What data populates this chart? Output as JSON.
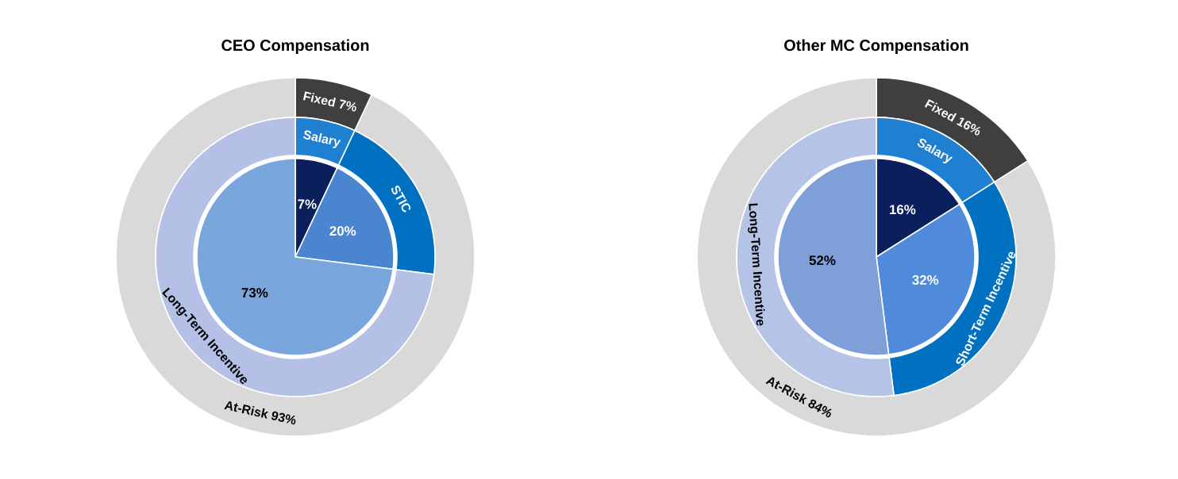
{
  "chart_data": [
    {
      "type": "donut",
      "title": "CEO Compensation",
      "categories": [
        "Fixed 7%",
        "At-Risk 93%"
      ],
      "values": [
        7,
        93
      ],
      "colors": [
        "#3f3f3f",
        "#d9d9d9"
      ]
    },
    {
      "type": "donut",
      "categories": [
        "Salary",
        "STIC",
        "Long-Term Incentive"
      ],
      "values": [
        7,
        20,
        73
      ],
      "colors": [
        "#1f7fd0",
        "#0070c0",
        "#b4c0e6"
      ]
    },
    {
      "type": "pie",
      "categories": [
        null,
        null,
        null
      ],
      "values": [
        7,
        20,
        73
      ],
      "colors": [
        "#0a1f5c",
        "#4a86d0",
        "#7aa6de"
      ],
      "value_labels": [
        "7%",
        "20%",
        "73%"
      ]
    },
    {
      "type": "donut",
      "title": "Other MC Compensation",
      "categories": [
        "Fixed 16%",
        "At-Risk 84%"
      ],
      "values": [
        16,
        84
      ],
      "colors": [
        "#3f3f3f",
        "#d9d9d9"
      ]
    },
    {
      "type": "donut",
      "categories": [
        "Salary",
        "Short-Term Incentive",
        "Long-Term Incentive"
      ],
      "values": [
        16,
        32,
        52
      ],
      "colors": [
        "#1f7fd0",
        "#0070c0",
        "#b4c3e6"
      ]
    },
    {
      "type": "pie",
      "categories": [
        null,
        null,
        null
      ],
      "values": [
        16,
        32,
        52
      ],
      "colors": [
        "#0a1f5c",
        "#4f8adb",
        "#7f9fd8"
      ],
      "value_labels": [
        "16%",
        "32%",
        "52%"
      ]
    }
  ]
}
